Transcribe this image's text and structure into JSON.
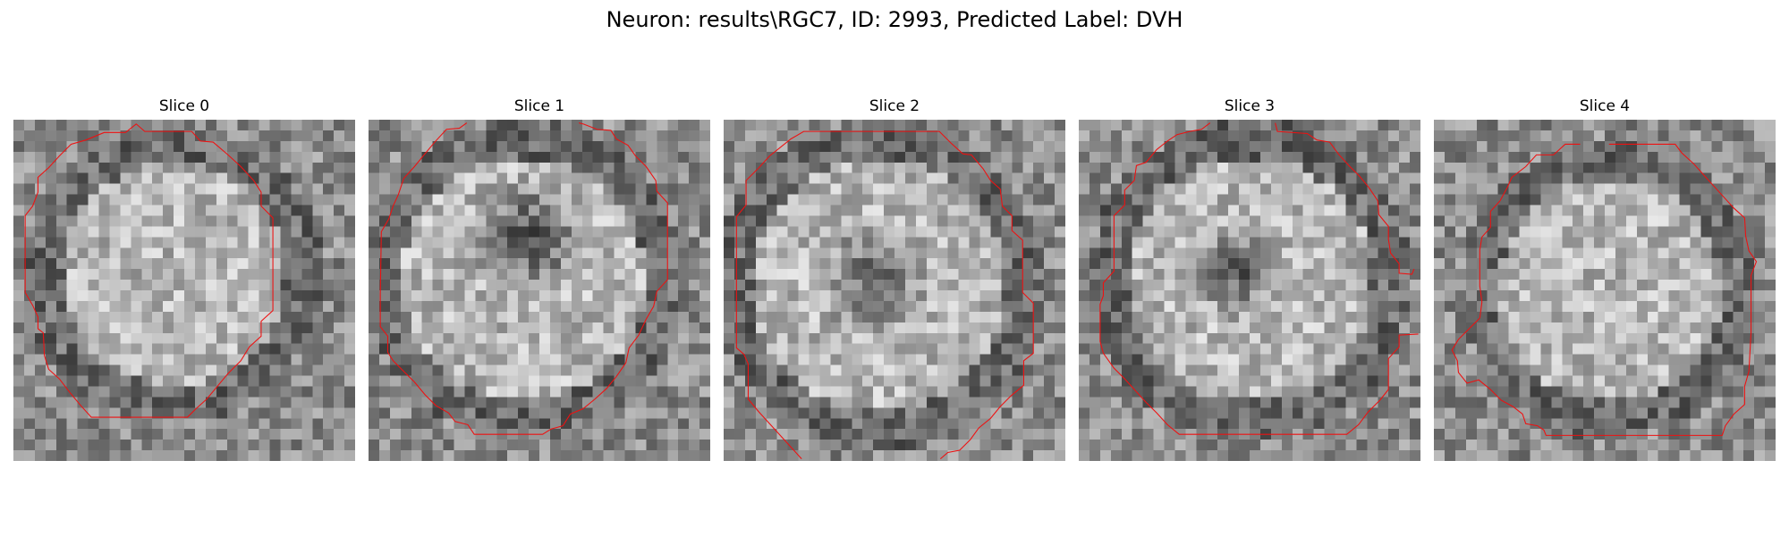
{
  "figure": {
    "title": "Neuron: results\\RGC7, ID: 2993, Predicted Label: DVH"
  },
  "colors": {
    "contour": "#ee1111",
    "background": "#ffffff"
  },
  "panels": [
    {
      "title": "Slice 0"
    },
    {
      "title": "Slice 1"
    },
    {
      "title": "Slice 2"
    },
    {
      "title": "Slice 3"
    },
    {
      "title": "Slice 4"
    }
  ]
}
